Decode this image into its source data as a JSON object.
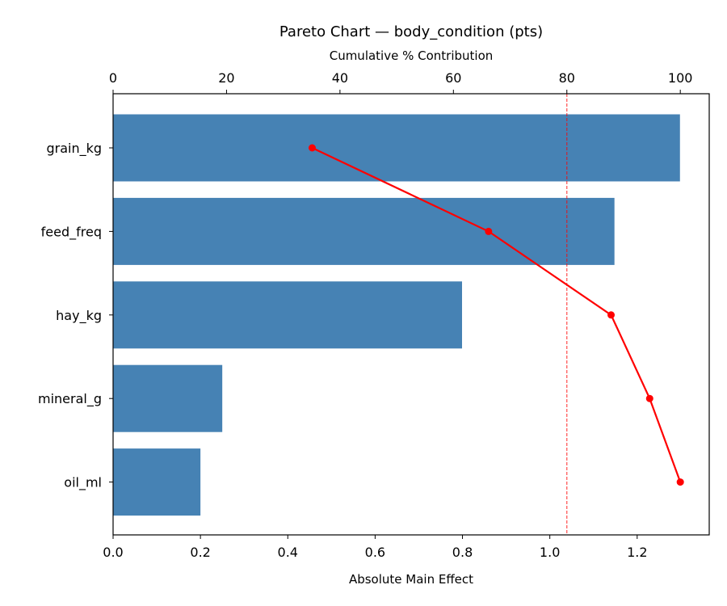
{
  "chart_data": {
    "type": "bar",
    "orientation": "horizontal",
    "title": "Pareto Chart — body_condition (pts)",
    "xlabel": "Absolute Main Effect",
    "x2label": "Cumulative % Contribution",
    "categories": [
      "grain_kg",
      "feed_freq",
      "hay_kg",
      "mineral_g",
      "oil_ml"
    ],
    "values": [
      1.298,
      1.148,
      0.799,
      0.25,
      0.2
    ],
    "cumulative_percent": [
      35.1,
      66.2,
      87.8,
      94.6,
      100.0
    ],
    "threshold_percent": 80,
    "xlim": [
      0,
      1.365
    ],
    "x2lim": [
      0,
      105.1
    ],
    "xticks": [
      "0.0",
      "0.2",
      "0.4",
      "0.6",
      "0.8",
      "1.0",
      "1.2"
    ],
    "x2ticks": [
      "0",
      "20",
      "40",
      "60",
      "80",
      "100"
    ],
    "grid": false,
    "colors": {
      "bar": "#4682b4",
      "line": "#ff0000",
      "threshold": "#ff0000"
    }
  }
}
